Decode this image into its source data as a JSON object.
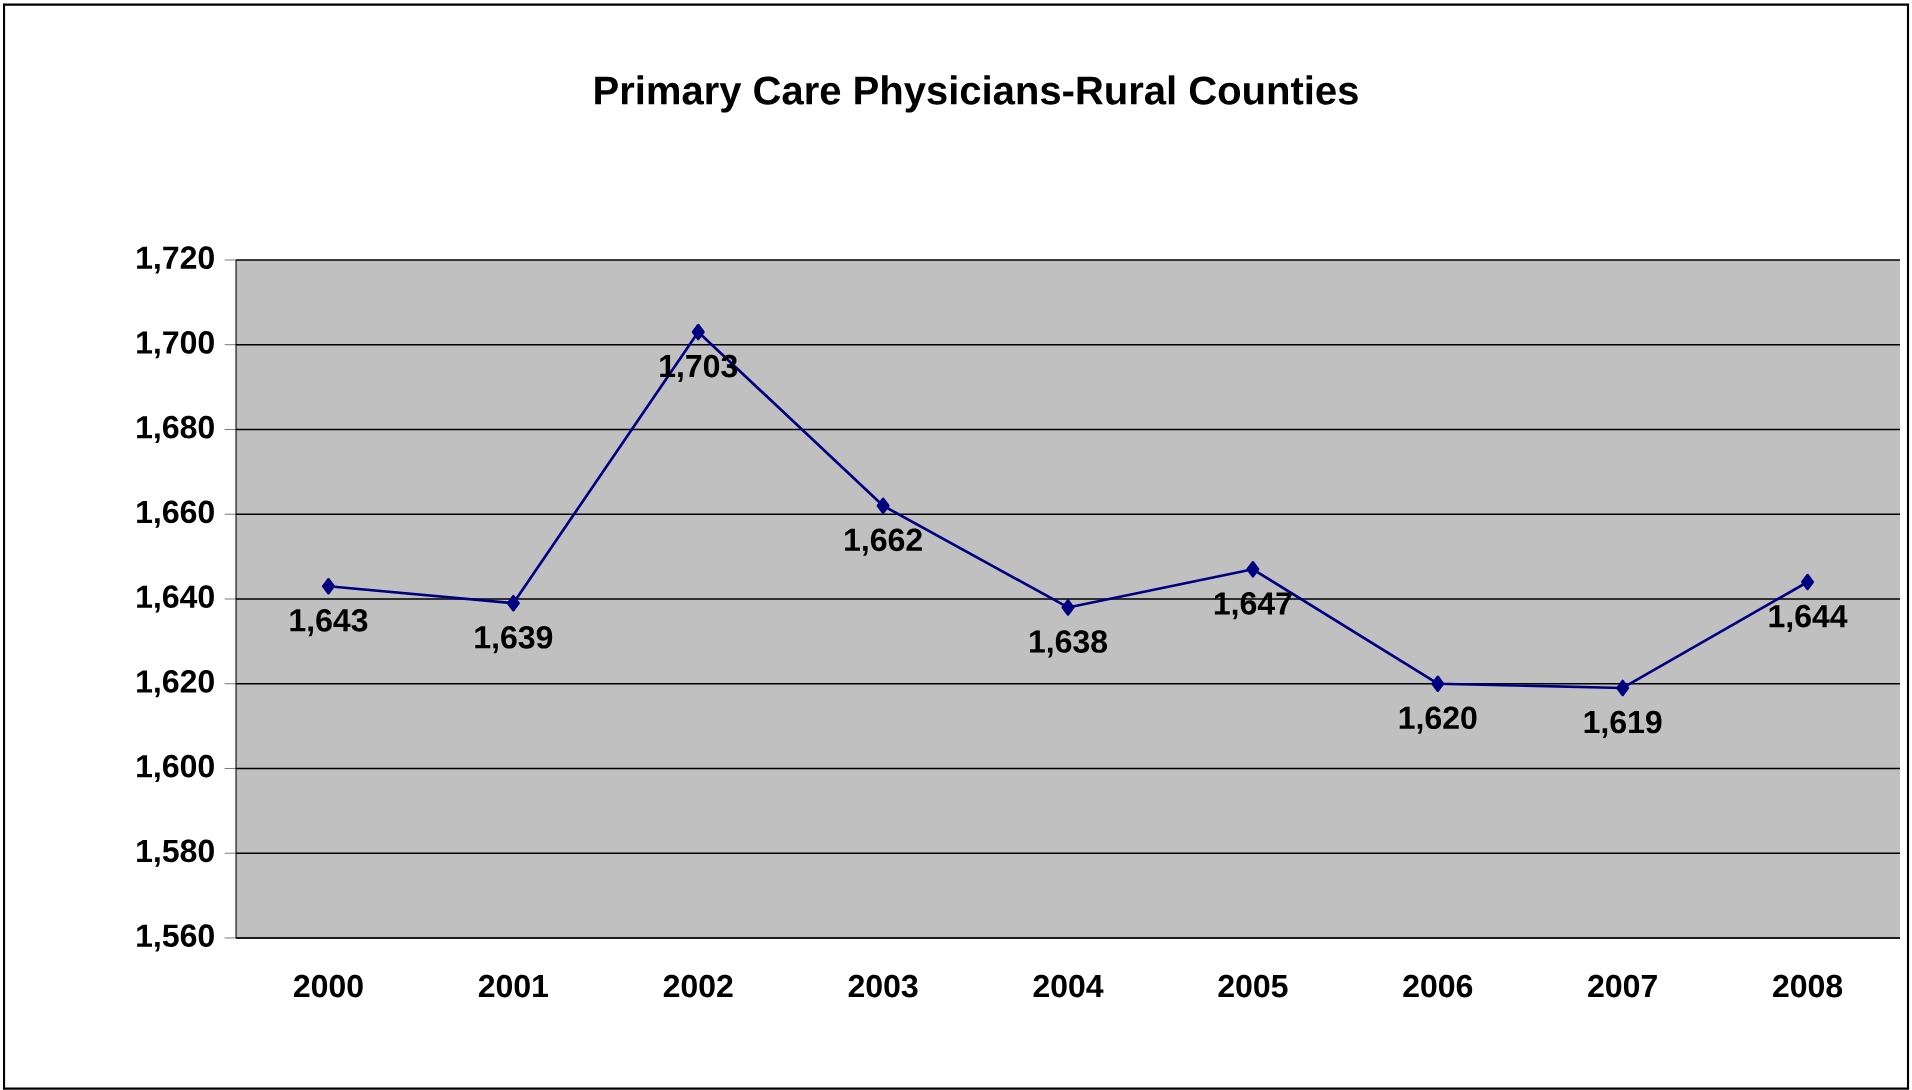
{
  "chart_data": {
    "type": "line",
    "title": "Primary Care Physicians-Rural Counties",
    "categories": [
      "2000",
      "2001",
      "2002",
      "2003",
      "2004",
      "2005",
      "2006",
      "2007",
      "2008"
    ],
    "values": [
      1643,
      1639,
      1703,
      1662,
      1638,
      1647,
      1620,
      1619,
      1644
    ],
    "value_labels": [
      "1,643",
      "1,639",
      "1,703",
      "1,662",
      "1,638",
      "1,647",
      "1,620",
      "1,619",
      "1,644"
    ],
    "color": "#000080",
    "marker": "diamond",
    "grid": "y",
    "ylim": [
      1560,
      1720
    ],
    "yticks": [
      {
        "value": 1560,
        "label": "1,560"
      },
      {
        "value": 1580,
        "label": "1,580"
      },
      {
        "value": 1600,
        "label": "1,600"
      },
      {
        "value": 1620,
        "label": "1,620"
      },
      {
        "value": 1640,
        "label": "1,640"
      },
      {
        "value": 1660,
        "label": "1,660"
      },
      {
        "value": 1680,
        "label": "1,680"
      },
      {
        "value": 1700,
        "label": "1,700"
      },
      {
        "value": 1720,
        "label": "1,720"
      }
    ]
  }
}
